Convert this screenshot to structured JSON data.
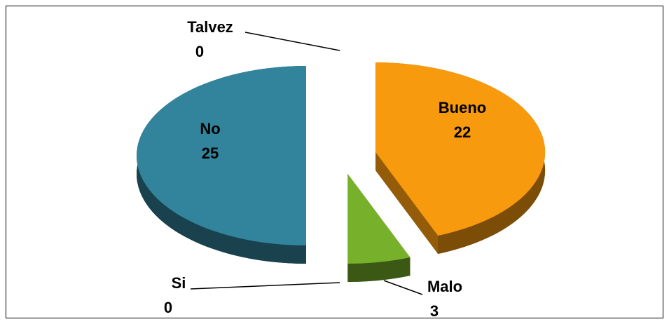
{
  "chart_data": {
    "type": "pie",
    "categories": [
      "Bueno",
      "Malo",
      "Si",
      "No",
      "Talvez"
    ],
    "values": [
      22,
      3,
      0,
      25,
      0
    ],
    "colors": [
      "#f79a0e",
      "#77b02a",
      "#4f81bd",
      "#31849b",
      "#8064a2"
    ]
  }
}
